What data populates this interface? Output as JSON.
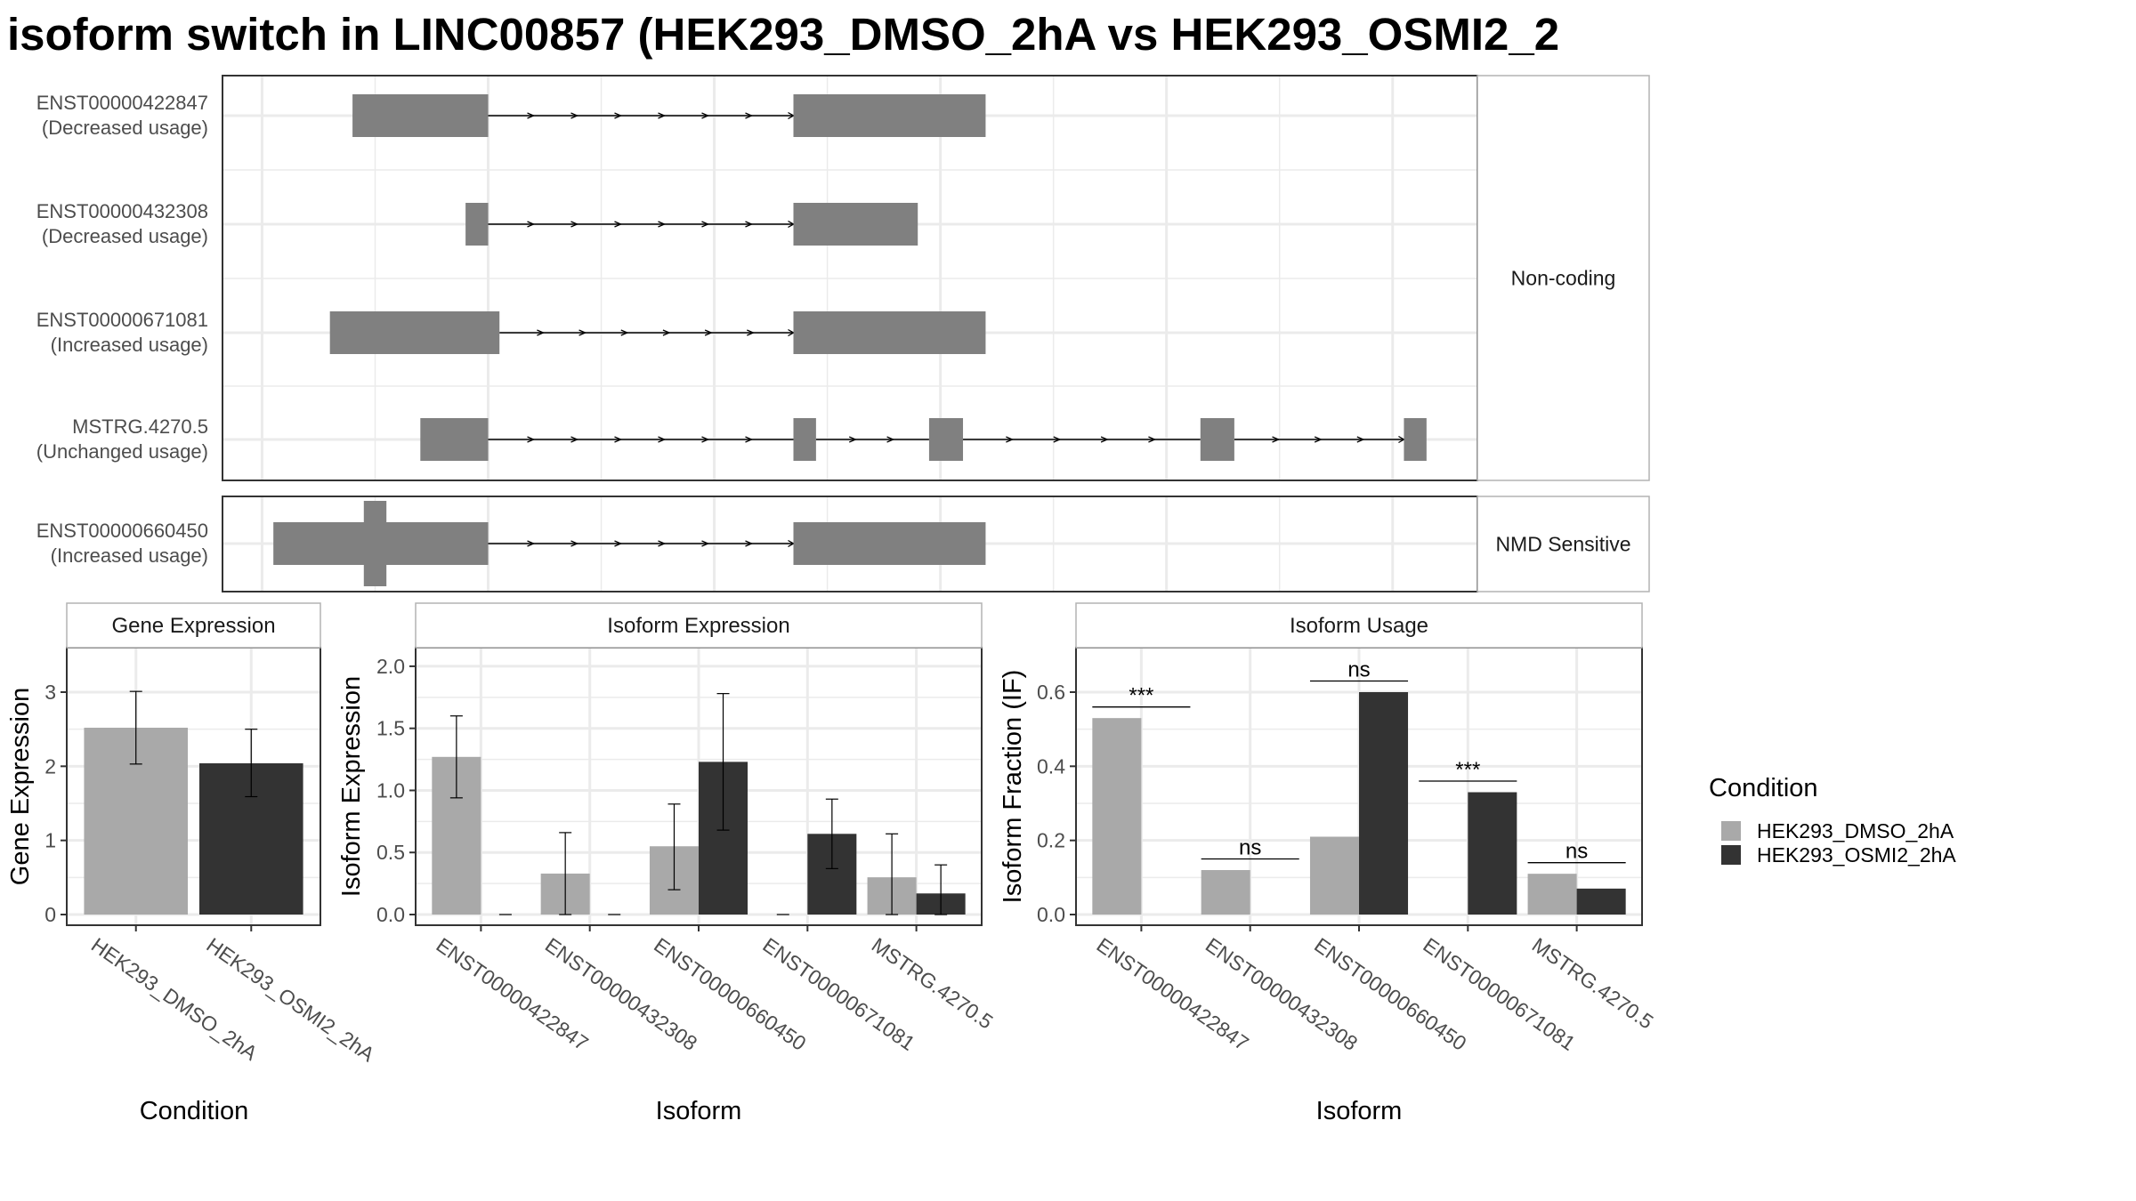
{
  "title": "isoform switch in LINC00857 (HEK293_DMSO_2hA vs HEK293_OSMI2_2",
  "colors": {
    "exon": "#808080",
    "condition_1": "#a9a9a9",
    "condition_2": "#333333",
    "grid": "#ebebeb",
    "panel_border": "#333333",
    "strip_border": "#b3b3b3"
  },
  "chart_data": [
    {
      "type": "transcript-structure",
      "facets": [
        {
          "label": "Non-coding",
          "transcripts": [
            {
              "id": "ENST00000422847",
              "usage": "(Decreased usage)",
              "exons": [
                [
                  0.08,
                  0.2
                ],
                [
                  0.47,
                  0.64
                ]
              ],
              "cds": []
            },
            {
              "id": "ENST00000432308",
              "usage": "(Decreased usage)",
              "exons": [
                [
                  0.18,
                  0.2
                ],
                [
                  0.47,
                  0.58
                ]
              ],
              "cds": []
            },
            {
              "id": "ENST00000671081",
              "usage": "(Increased usage)",
              "exons": [
                [
                  0.06,
                  0.21
                ],
                [
                  0.47,
                  0.64
                ]
              ],
              "cds": []
            },
            {
              "id": "MSTRG.4270.5",
              "usage": "(Unchanged usage)",
              "exons": [
                [
                  0.14,
                  0.2
                ],
                [
                  0.47,
                  0.49
                ],
                [
                  0.59,
                  0.62
                ],
                [
                  0.83,
                  0.86
                ],
                [
                  1.01,
                  1.03
                ]
              ],
              "cds": []
            }
          ]
        },
        {
          "label": "NMD Sensitive",
          "transcripts": [
            {
              "id": "ENST00000660450",
              "usage": "(Increased usage)",
              "exons": [
                [
                  0.01,
                  0.2
                ],
                [
                  0.47,
                  0.64
                ]
              ],
              "cds": [
                [
                  0.09,
                  0.11
                ]
              ]
            }
          ]
        }
      ]
    },
    {
      "type": "bar",
      "strip": "Gene Expression",
      "xlabel": "Condition",
      "ylabel": "Gene Expression",
      "ylim": [
        0,
        3.6
      ],
      "yticks": [
        "0",
        "1",
        "2",
        "3"
      ],
      "categories": [
        "HEK293_DMSO_2hA",
        "HEK293_OSMI2_2hA"
      ],
      "series": [
        {
          "name": "HEK293_DMSO_2hA",
          "values": [
            2.52,
            null
          ],
          "err_low": [
            2.03,
            null
          ],
          "err_high": [
            3.01,
            null
          ]
        },
        {
          "name": "HEK293_OSMI2_2hA",
          "values": [
            null,
            2.04
          ],
          "err_low": [
            null,
            1.59
          ],
          "err_high": [
            null,
            2.5
          ]
        }
      ]
    },
    {
      "type": "bar",
      "strip": "Isoform Expression",
      "xlabel": "Isoform",
      "ylabel": "Isoform Expression",
      "ylim": [
        0,
        2.15
      ],
      "yticks": [
        "0.0",
        "0.5",
        "1.0",
        "1.5",
        "2.0"
      ],
      "categories": [
        "ENST00000422847",
        "ENST00000432308",
        "ENST00000660450",
        "ENST00000671081",
        "MSTRG.4270.5"
      ],
      "series": [
        {
          "name": "HEK293_DMSO_2hA",
          "values": [
            1.27,
            0.33,
            0.55,
            0.0,
            0.3
          ],
          "err_low": [
            0.94,
            0.0,
            0.2,
            0.0,
            0.0
          ],
          "err_high": [
            1.6,
            0.66,
            0.89,
            0.0,
            0.65
          ]
        },
        {
          "name": "HEK293_OSMI2_2hA",
          "values": [
            0.0,
            0.0,
            1.23,
            0.65,
            0.17
          ],
          "err_low": [
            0.0,
            0.0,
            0.68,
            0.37,
            0.0
          ],
          "err_high": [
            0.0,
            0.0,
            1.78,
            0.93,
            0.4
          ]
        }
      ]
    },
    {
      "type": "bar",
      "strip": "Isoform Usage",
      "xlabel": "Isoform",
      "ylabel": "Isoform Fraction (IF)",
      "ylim": [
        0,
        0.72
      ],
      "yticks": [
        "0.0",
        "0.2",
        "0.4",
        "0.6"
      ],
      "categories": [
        "ENST00000422847",
        "ENST00000432308",
        "ENST00000660450",
        "ENST00000671081",
        "MSTRG.4270.5"
      ],
      "series": [
        {
          "name": "HEK293_DMSO_2hA",
          "values": [
            0.53,
            0.12,
            0.21,
            0.0,
            0.11
          ]
        },
        {
          "name": "HEK293_OSMI2_2hA",
          "values": [
            0.0,
            0.0,
            0.6,
            0.33,
            0.07
          ]
        }
      ],
      "annotations": [
        {
          "category": 0,
          "text": "***",
          "y": 0.56
        },
        {
          "category": 1,
          "text": "ns",
          "y": 0.15
        },
        {
          "category": 2,
          "text": "ns",
          "y": 0.63
        },
        {
          "category": 3,
          "text": "***",
          "y": 0.36
        },
        {
          "category": 4,
          "text": "ns",
          "y": 0.14
        }
      ]
    }
  ],
  "legend": {
    "title": "Condition",
    "items": [
      "HEK293_DMSO_2hA",
      "HEK293_OSMI2_2hA"
    ]
  }
}
